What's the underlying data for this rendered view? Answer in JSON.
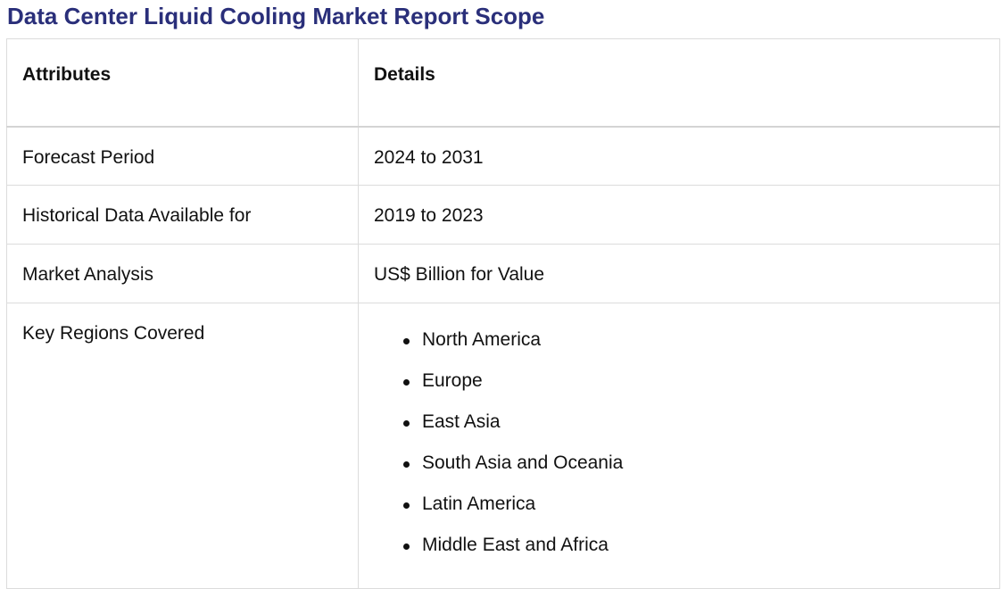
{
  "title": "Data Center Liquid Cooling Market Report Scope",
  "table": {
    "headers": [
      "Attributes",
      "Details"
    ],
    "rows": [
      {
        "attribute": "Forecast Period",
        "detail": "2024 to 2031"
      },
      {
        "attribute": "Historical Data Available for",
        "detail": "2019 to 2023"
      },
      {
        "attribute": "Market Analysis",
        "detail": "US$ Billion for Value"
      }
    ],
    "regions_row": {
      "attribute": "Key Regions Covered",
      "items": [
        "North America",
        "Europe",
        "East Asia",
        "South Asia and Oceania",
        "Latin America",
        "Middle East and Africa"
      ]
    }
  },
  "colors": {
    "title": "#2a2f7a",
    "border": "#dcdcdc",
    "text": "#111111"
  }
}
